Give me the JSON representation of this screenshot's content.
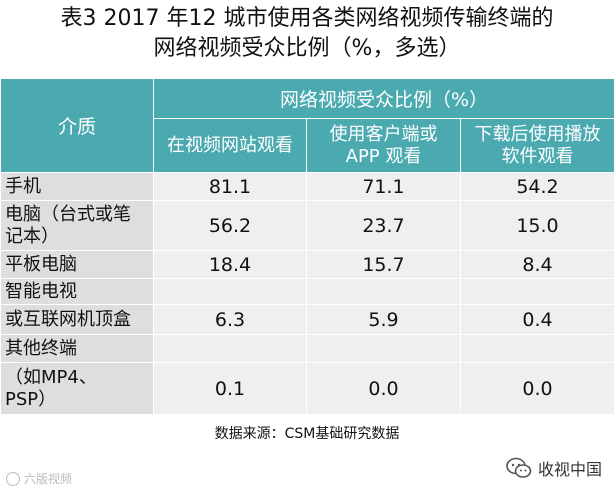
{
  "title": {
    "line1": "表3 2017 年12 城市使用各类网络视频传输终端的",
    "line2": "网络视频受众比例（%，多选）"
  },
  "table": {
    "corner_header": "介质",
    "group_header": "网络视频受众比例（%）",
    "columns": [
      "在视频网站观看",
      "使用客户端或APP 观看",
      "下载后使用播放软件观看"
    ],
    "column_lines": [
      [
        "在视频网站观看",
        ""
      ],
      [
        "使用客户端或",
        "APP 观看"
      ],
      [
        "下载后使用播放",
        "软件观看"
      ]
    ],
    "rows": [
      {
        "label": [
          "手机"
        ],
        "values": [
          "81.1",
          "71.1",
          "54.2"
        ]
      },
      {
        "label": [
          "电脑（台式或笔",
          "记本）"
        ],
        "values": [
          "56.2",
          "23.7",
          "15.0"
        ]
      },
      {
        "label": [
          "平板电脑"
        ],
        "values": [
          "18.4",
          "15.7",
          "8.4"
        ]
      },
      {
        "label": [
          "智能电视"
        ],
        "values": [
          "",
          "",
          ""
        ]
      },
      {
        "label": [
          "或互联网机顶盒"
        ],
        "values": [
          "6.3",
          "5.9",
          "0.4"
        ]
      },
      {
        "label": [
          "其他终端"
        ],
        "values": [
          "",
          "",
          ""
        ]
      },
      {
        "label": [
          "（如MP4、",
          "PSP）"
        ],
        "values": [
          "0.1",
          "0.0",
          "0.0"
        ]
      }
    ]
  },
  "source": "数据来源：CSM基础研究数据",
  "watermark_left": "六版视频",
  "watermark_right": "收视中国",
  "colors": {
    "header_bg": "#4aaab0",
    "row_label_bg": "#dedede",
    "cell_bg": "#efefef"
  }
}
